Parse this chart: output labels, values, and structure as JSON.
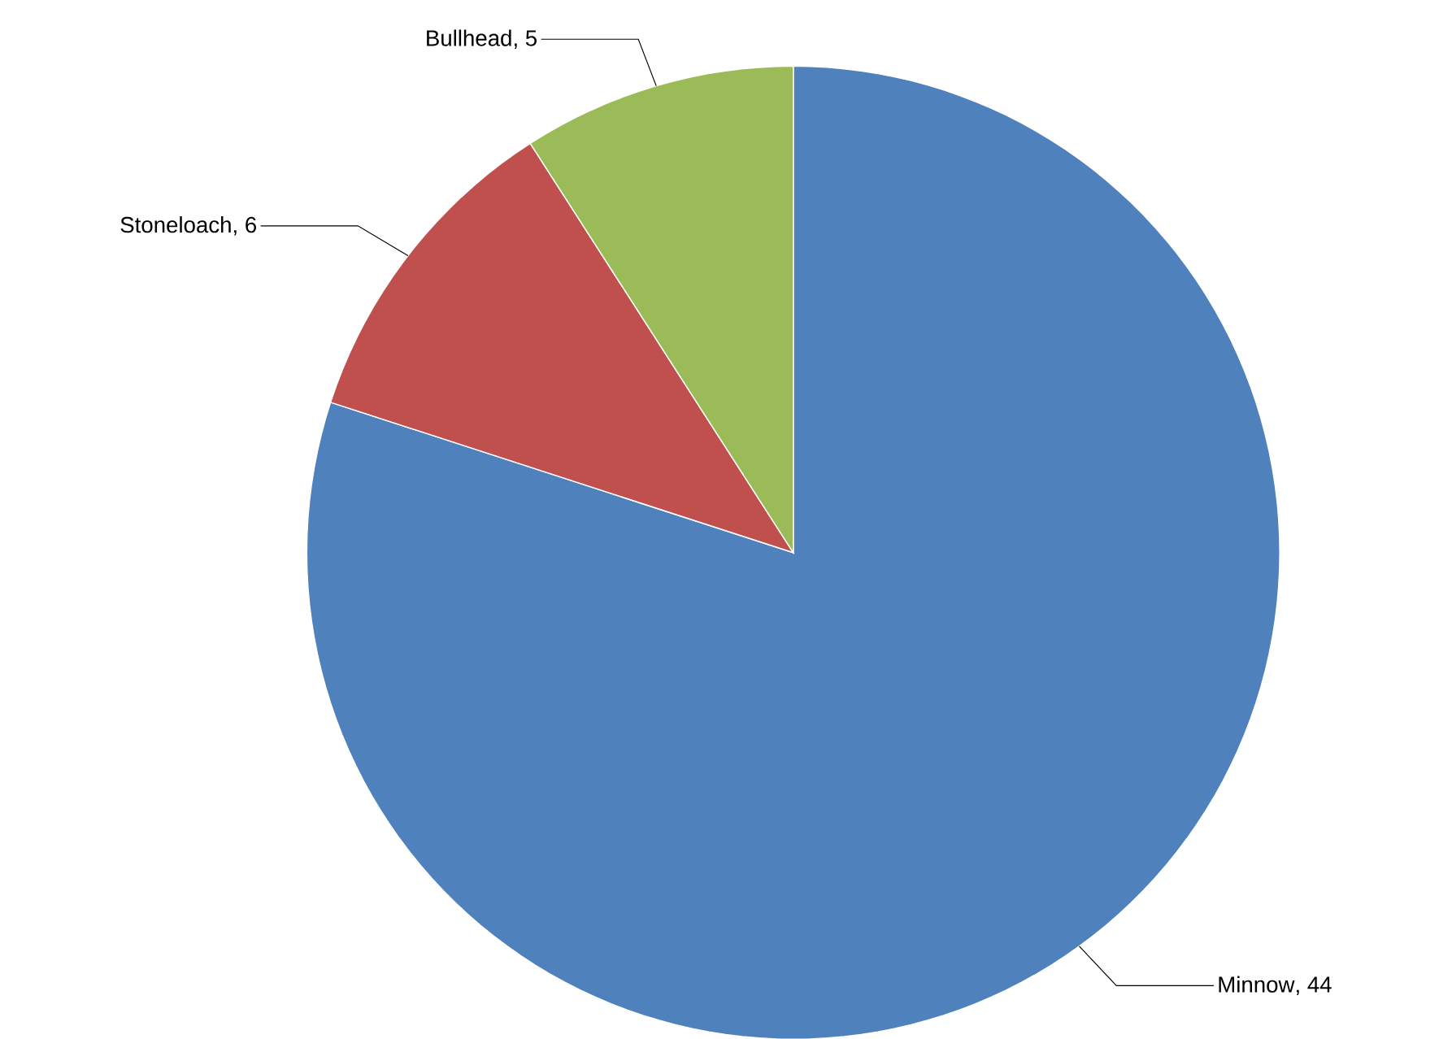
{
  "chart_data": {
    "type": "pie",
    "categories": [
      "Minnow",
      "Stoneloach",
      "Bullhead"
    ],
    "values": [
      44,
      6,
      5
    ],
    "value_labels": [
      ", 44",
      ", 6",
      ", 5"
    ],
    "colors": [
      "#4f81bd",
      "#c0504d",
      "#9bbb59"
    ],
    "data_labels": true
  }
}
